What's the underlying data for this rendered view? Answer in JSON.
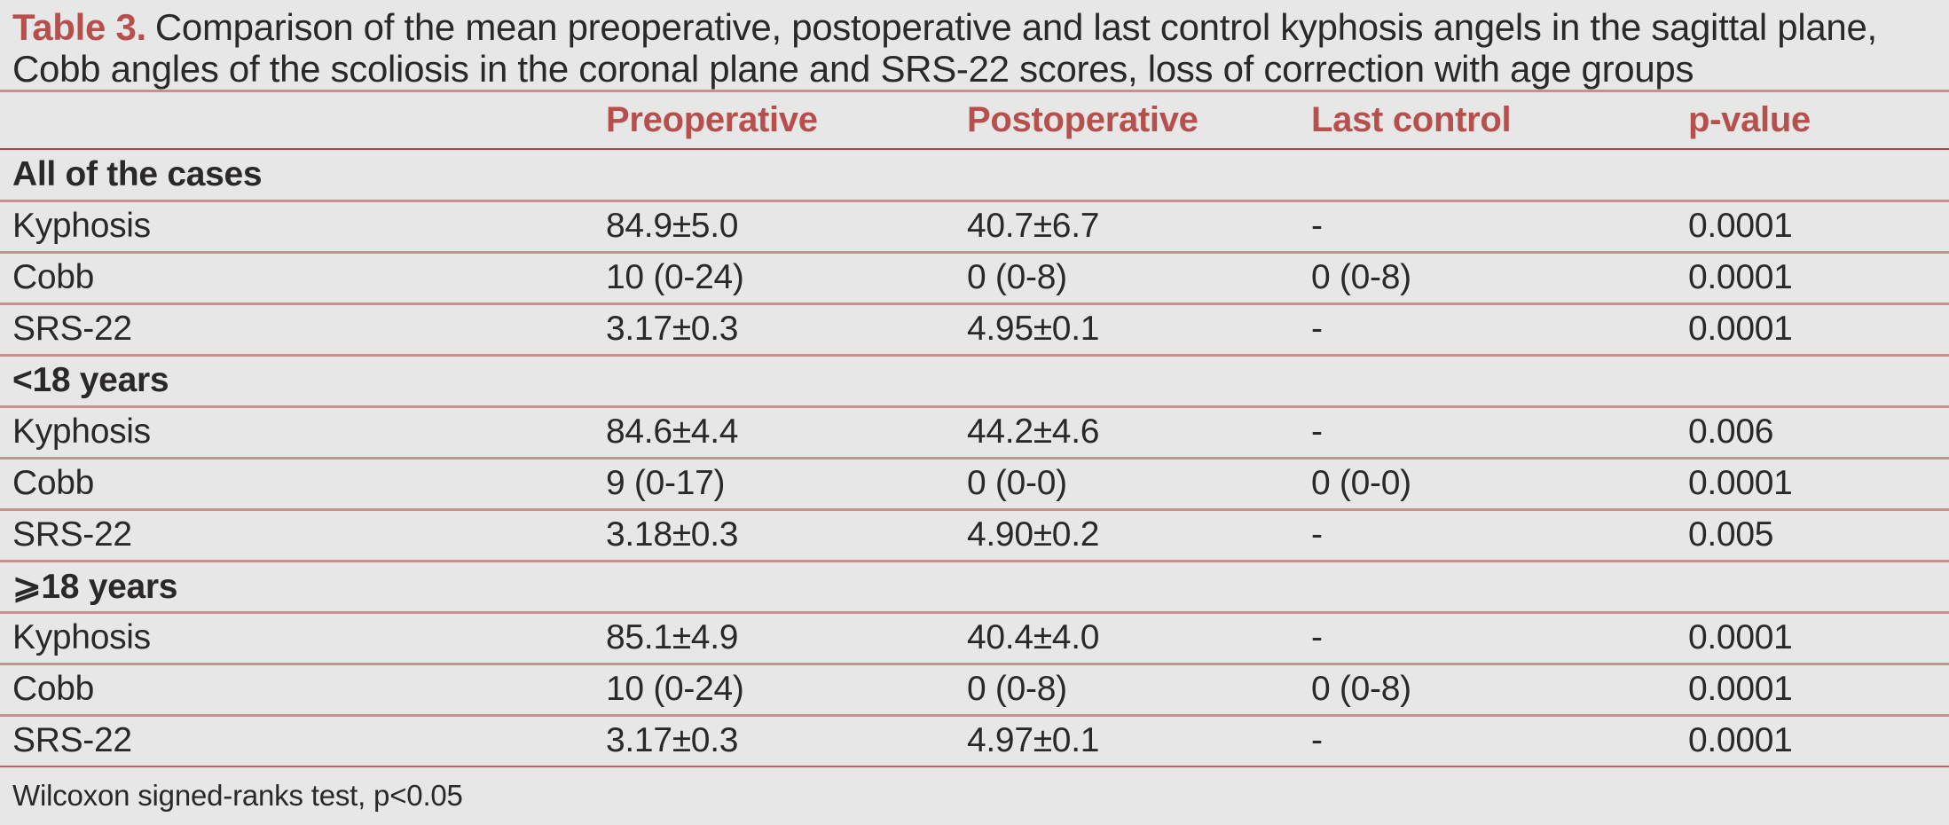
{
  "colors": {
    "background": "#e8e7e7",
    "text": "#2b282b",
    "accent_red": "#b5504d",
    "line_salmon": "#c98f8a",
    "line_dark_red": "#a64946",
    "line_footer_red": "#c2655f"
  },
  "table": {
    "label": "Table 3.",
    "title": "Comparison of the mean preoperative, postoperative and last control kyphosis angels in the sagittal plane, Cobb angles of the scoliosis in the coronal plane and SRS-22 scores, loss of correction with age groups",
    "columns": [
      "",
      "Preoperative",
      "Postoperative",
      "Last control",
      "p-value"
    ],
    "sections": [
      {
        "header": "All of the cases",
        "rows": [
          {
            "cells": [
              "Kyphosis",
              "84.9±5.0",
              "40.7±6.7",
              "-",
              "0.0001"
            ]
          },
          {
            "cells": [
              "Cobb",
              "10 (0-24)",
              "0 (0-8)",
              "0 (0-8)",
              "0.0001"
            ]
          },
          {
            "cells": [
              "SRS-22",
              "3.17±0.3",
              "4.95±0.1",
              "-",
              "0.0001"
            ]
          }
        ]
      },
      {
        "header": "<18 years",
        "rows": [
          {
            "cells": [
              "Kyphosis",
              "84.6±4.4",
              "44.2±4.6",
              "-",
              "0.006"
            ]
          },
          {
            "cells": [
              "Cobb",
              "9 (0-17)",
              "0 (0-0)",
              "0 (0-0)",
              "0.0001"
            ]
          },
          {
            "cells": [
              "SRS-22",
              "3.18±0.3",
              "4.90±0.2",
              "-",
              "0.005"
            ]
          }
        ]
      },
      {
        "header": "⩾18 years",
        "rows": [
          {
            "cells": [
              "Kyphosis",
              "85.1±4.9",
              "40.4±4.0",
              "-",
              "0.0001"
            ]
          },
          {
            "cells": [
              "Cobb",
              "10 (0-24)",
              "0 (0-8)",
              "0 (0-8)",
              "0.0001"
            ]
          },
          {
            "cells": [
              "SRS-22",
              "3.17±0.3",
              "4.97±0.1",
              "-",
              "0.0001"
            ]
          }
        ]
      }
    ],
    "footnote": "Wilcoxon signed-ranks test, p<0.05"
  }
}
